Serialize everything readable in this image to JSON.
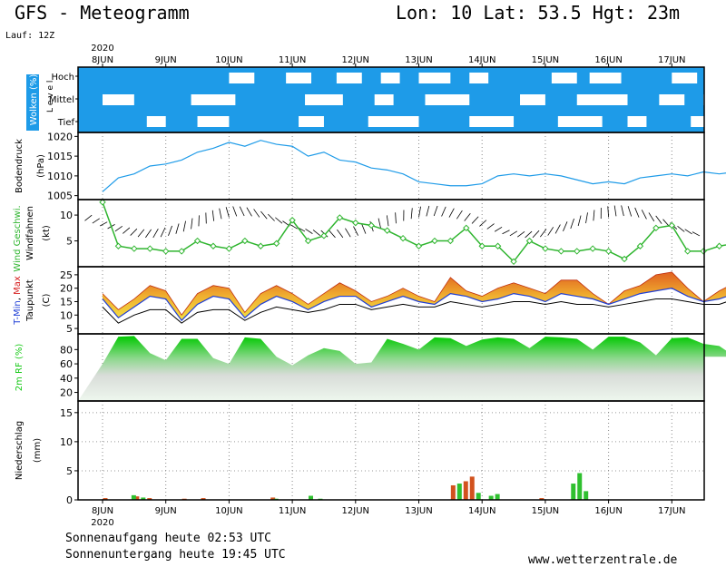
{
  "header": {
    "title": "GFS - Meteogramm",
    "location": "Lon: 10 Lat: 53.5 Hgt: 23m",
    "run": "Lauf: 12Z"
  },
  "dates": {
    "year": "2020",
    "labels": [
      "8JUN",
      "9JUN",
      "10JUN",
      "11JUN",
      "12JUN",
      "13JUN",
      "14JUN",
      "15JUN",
      "16JUN",
      "17JUN"
    ]
  },
  "footer": {
    "sunrise": "Sonnenaufgang heute 02:53 UTC",
    "sunset": "Sonnenuntergang heute 19:45 UTC",
    "site": "www.wetterzentrale.de"
  },
  "colors": {
    "cloud": "#1e9be8",
    "pressure": "#1e9be8",
    "wind_speed": "#2fb52f",
    "temp_min": "#1f3fd6",
    "temp_max": "#d62020",
    "humidity": "#17c917",
    "precip_red": "#d2521e",
    "precip_green": "#2fc02f"
  },
  "chart_data": [
    {
      "type": "heatmap",
      "panel": "clouds",
      "ylabel": "Wolken (%)",
      "level_label": "L e v e l",
      "levels": [
        "Hoch",
        "Mittel",
        "Tief"
      ],
      "x_days": [
        0,
        10
      ],
      "clear_segments": {
        "Hoch": [
          [
            2.0,
            2.4
          ],
          [
            2.9,
            3.3
          ],
          [
            3.7,
            4.1
          ],
          [
            4.4,
            4.7
          ],
          [
            5.0,
            5.5
          ],
          [
            5.8,
            6.1
          ],
          [
            7.1,
            7.5
          ],
          [
            7.7,
            8.2
          ],
          [
            9.0,
            9.4
          ]
        ],
        "Mittel": [
          [
            0.0,
            0.5
          ],
          [
            1.4,
            2.1
          ],
          [
            3.2,
            3.8
          ],
          [
            4.3,
            4.6
          ],
          [
            5.1,
            5.8
          ],
          [
            6.6,
            7.0
          ],
          [
            7.5,
            8.3
          ],
          [
            8.8,
            9.2
          ],
          [
            9.5,
            9.9
          ]
        ],
        "Tief": [
          [
            0.7,
            1.0
          ],
          [
            1.5,
            2.0
          ],
          [
            3.1,
            3.5
          ],
          [
            4.2,
            5.0
          ],
          [
            5.8,
            6.5
          ],
          [
            7.2,
            7.9
          ],
          [
            8.3,
            8.6
          ],
          [
            9.3,
            9.9
          ]
        ]
      }
    },
    {
      "type": "line",
      "panel": "pressure",
      "ylabel": "Bodendruck",
      "unit": "(hPa)",
      "ylim": [
        1004,
        1021
      ],
      "yticks": [
        1005,
        1010,
        1015,
        1020
      ],
      "x": [
        0,
        0.25,
        0.5,
        0.75,
        1,
        1.25,
        1.5,
        1.75,
        2,
        2.25,
        2.5,
        2.75,
        3,
        3.25,
        3.5,
        3.75,
        4,
        4.25,
        4.5,
        4.75,
        5,
        5.25,
        5.5,
        5.75,
        6,
        6.25,
        6.5,
        6.75,
        7,
        7.25,
        7.5,
        7.75,
        8,
        8.25,
        8.5,
        8.75,
        9,
        9.25,
        9.5,
        9.75,
        10
      ],
      "values": [
        1006,
        1009.5,
        1010.5,
        1012.5,
        1013,
        1014,
        1016,
        1017,
        1018.5,
        1017.5,
        1019,
        1018,
        1017.5,
        1015,
        1016,
        1014,
        1013.5,
        1012,
        1011.5,
        1010.5,
        1008.5,
        1008,
        1007.5,
        1007.5,
        1008,
        1010,
        1010.5,
        1010,
        1010.5,
        1010,
        1009,
        1008,
        1008.5,
        1008,
        1009.5,
        1010,
        1010.5,
        1010,
        1011,
        1010.5,
        1011
      ]
    },
    {
      "type": "line",
      "panel": "wind",
      "ylabel": "Wind Geschwi.",
      "ylabel2": "Windfahnen",
      "unit": "(kt)",
      "ylim": [
        0,
        13
      ],
      "yticks": [
        5,
        10
      ],
      "x": [
        0,
        0.25,
        0.5,
        0.75,
        1,
        1.25,
        1.5,
        1.75,
        2,
        2.25,
        2.5,
        2.75,
        3,
        3.25,
        3.5,
        3.75,
        4,
        4.25,
        4.5,
        4.75,
        5,
        5.25,
        5.5,
        5.75,
        6,
        6.25,
        6.5,
        6.75,
        7,
        7.25,
        7.5,
        7.75,
        8,
        8.25,
        8.5,
        8.75,
        9,
        9.25,
        9.5,
        9.75,
        10
      ],
      "values": [
        12.5,
        4,
        3.5,
        3.5,
        3,
        3,
        5,
        4,
        3.5,
        5,
        4,
        4.5,
        9,
        5,
        6,
        9.5,
        8.5,
        8,
        7,
        5.5,
        4,
        5,
        5,
        7.5,
        4,
        4,
        1,
        5,
        3.5,
        3,
        3,
        3.5,
        3,
        1.5,
        4,
        7.5,
        8,
        3,
        3,
        4,
        4.5
      ]
    },
    {
      "type": "area",
      "panel": "temperature",
      "ylabel": "T-Min, Max",
      "ylabel_parts": [
        "T-Min",
        ", ",
        "Max"
      ],
      "ylabel2": "Taupunkt",
      "unit": "(C)",
      "ylim": [
        3,
        28
      ],
      "yticks": [
        5,
        10,
        15,
        20,
        25
      ],
      "x": [
        0,
        0.25,
        0.5,
        0.75,
        1,
        1.25,
        1.5,
        1.75,
        2,
        2.25,
        2.5,
        2.75,
        3,
        3.25,
        3.5,
        3.75,
        4,
        4.25,
        4.5,
        4.75,
        5,
        5.25,
        5.5,
        5.75,
        6,
        6.25,
        6.5,
        6.75,
        7,
        7.25,
        7.5,
        7.75,
        8,
        8.25,
        8.5,
        8.75,
        9,
        9.25,
        9.5,
        9.75,
        10
      ],
      "series": [
        {
          "name": "T-Max",
          "values": [
            18,
            12,
            16,
            21,
            19,
            10,
            18,
            21,
            20,
            11,
            18,
            21,
            18,
            14,
            18,
            22,
            19,
            15,
            17,
            20,
            17,
            15,
            24,
            19,
            17,
            20,
            22,
            20,
            18,
            23,
            23,
            18,
            14,
            19,
            21,
            25,
            26,
            20,
            15,
            19,
            22
          ]
        },
        {
          "name": "T-Min",
          "values": [
            16,
            9,
            13,
            17,
            16,
            8,
            14,
            17,
            16,
            9,
            14,
            17,
            15,
            12,
            15,
            17,
            17,
            13,
            15,
            17,
            15,
            14,
            18,
            17,
            15,
            16,
            18,
            17,
            15,
            18,
            17,
            16,
            14,
            16,
            18,
            19,
            20,
            17,
            15,
            16,
            18
          ]
        },
        {
          "name": "Taupunkt",
          "values": [
            13,
            7,
            10,
            12,
            12,
            7,
            11,
            12,
            12,
            8,
            11,
            13,
            12,
            11,
            12,
            14,
            14,
            12,
            13,
            14,
            13,
            13,
            15,
            14,
            13,
            14,
            15,
            15,
            14,
            15,
            14,
            14,
            13,
            14,
            15,
            16,
            16,
            15,
            14,
            14,
            16
          ]
        }
      ]
    },
    {
      "type": "area",
      "panel": "humidity",
      "ylabel": "2m RF (%)",
      "ylim": [
        8,
        102
      ],
      "yticks": [
        20,
        40,
        60,
        80
      ],
      "x": [
        0,
        0.25,
        0.5,
        0.75,
        1,
        1.25,
        1.5,
        1.75,
        2,
        2.25,
        2.5,
        2.75,
        3,
        3.25,
        3.5,
        3.75,
        4,
        4.25,
        4.5,
        4.75,
        5,
        5.25,
        5.5,
        5.75,
        6,
        6.25,
        6.5,
        6.75,
        7,
        7.25,
        7.5,
        7.75,
        8,
        8.25,
        8.5,
        8.75,
        9,
        9.25,
        9.5,
        9.75,
        10
      ],
      "values": [
        60,
        98,
        99,
        75,
        65,
        95,
        95,
        68,
        60,
        97,
        95,
        70,
        58,
        72,
        82,
        78,
        60,
        62,
        95,
        88,
        80,
        97,
        96,
        85,
        94,
        97,
        95,
        82,
        98,
        97,
        95,
        80,
        98,
        98,
        90,
        72,
        96,
        97,
        88,
        85,
        70
      ]
    },
    {
      "type": "bar",
      "panel": "precipitation",
      "ylabel": "Niederschlag",
      "unit": "(mm)",
      "ylim": [
        0,
        17
      ],
      "yticks": [
        0,
        5,
        10,
        15
      ],
      "series": [
        {
          "name": "red",
          "x": [
            0.05,
            0.55,
            0.75,
            1.3,
            1.6,
            2.7,
            5.55,
            5.75,
            5.85,
            6.95
          ],
          "values": [
            0.3,
            0.6,
            0.3,
            0.2,
            0.3,
            0.4,
            2.5,
            3.2,
            4.0,
            0.3
          ]
        },
        {
          "name": "green",
          "x": [
            0.5,
            0.65,
            2.75,
            3.3,
            3.45,
            5.65,
            5.95,
            6.15,
            6.25,
            7.45,
            7.55,
            7.65
          ],
          "values": [
            0.8,
            0.4,
            0.2,
            0.7,
            0.2,
            2.8,
            1.2,
            0.7,
            1.0,
            2.8,
            4.6,
            1.5
          ]
        }
      ]
    }
  ]
}
